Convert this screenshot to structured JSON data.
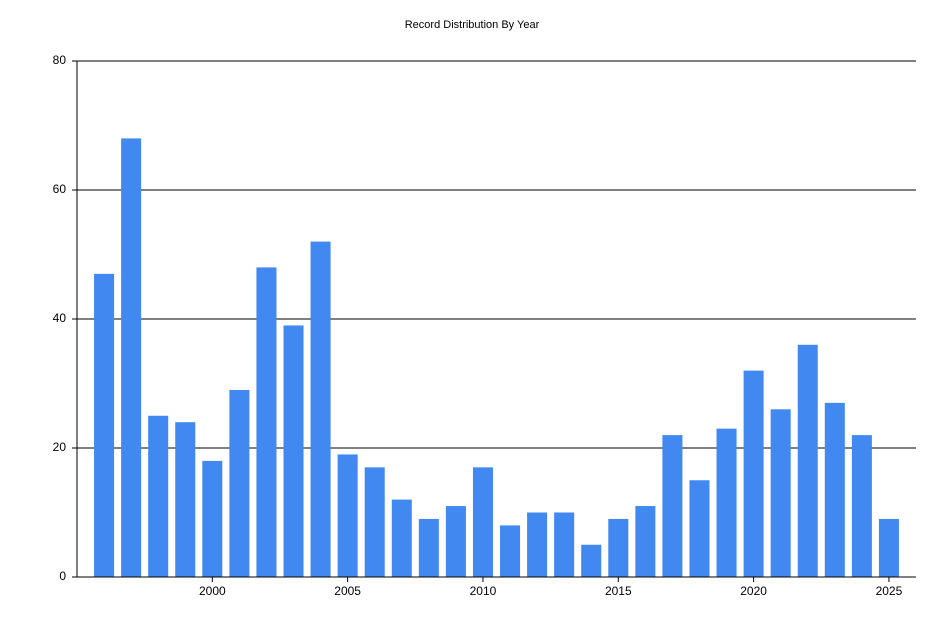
{
  "chart_data": {
    "type": "bar",
    "title": "Record Distribution By Year",
    "x": [
      1996,
      1997,
      1998,
      1999,
      2000,
      2001,
      2002,
      2003,
      2004,
      2005,
      2006,
      2007,
      2008,
      2009,
      2010,
      2011,
      2012,
      2013,
      2014,
      2015,
      2016,
      2017,
      2018,
      2019,
      2020,
      2021,
      2022,
      2023,
      2024,
      2025
    ],
    "values": [
      47,
      68,
      25,
      24,
      18,
      29,
      48,
      39,
      52,
      19,
      17,
      12,
      9,
      11,
      17,
      8,
      10,
      10,
      5,
      9,
      11,
      22,
      15,
      23,
      32,
      26,
      36,
      27,
      22,
      9
    ],
    "color": "#4189f0",
    "xlim": [
      1995,
      2026
    ],
    "xticks": [
      2000,
      2005,
      2010,
      2015,
      2020,
      2025
    ],
    "ylim": [
      0,
      80
    ],
    "yticks": [
      0,
      20,
      40,
      60,
      80
    ],
    "grid": true
  }
}
